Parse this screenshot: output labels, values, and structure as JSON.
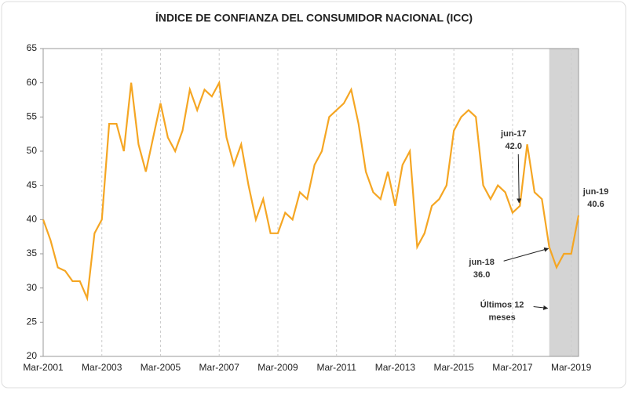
{
  "chart_data": {
    "type": "line",
    "title": "ÍNDICE DE CONFIANZA DEL CONSUMIDOR NACIONAL (ICC)",
    "categories": [
      "Mar-2001",
      null,
      null,
      null,
      null,
      null,
      null,
      null,
      "Mar-2003",
      null,
      null,
      null,
      null,
      null,
      null,
      null,
      "Mar-2005",
      null,
      null,
      null,
      null,
      null,
      null,
      null,
      "Mar-2007",
      null,
      null,
      null,
      null,
      null,
      null,
      null,
      "Mar-2009",
      null,
      null,
      null,
      null,
      null,
      null,
      null,
      "Mar-2011",
      null,
      null,
      null,
      null,
      null,
      null,
      null,
      "Mar-2013",
      null,
      null,
      null,
      null,
      null,
      null,
      null,
      "Mar-2015",
      null,
      null,
      null,
      null,
      null,
      null,
      null,
      "Mar-2017",
      null,
      null,
      null,
      null,
      null,
      null,
      null,
      "Mar-2019",
      null
    ],
    "series": [
      {
        "name": "ICC",
        "color": "#f5a623",
        "values": [
          40,
          37,
          33,
          32.5,
          31,
          31,
          28.5,
          38,
          40,
          54,
          54,
          50,
          60,
          51,
          47,
          52,
          57,
          52,
          50,
          53,
          59,
          56,
          59,
          58,
          60,
          52,
          48,
          51,
          45,
          40,
          43,
          38,
          38,
          41,
          40,
          44,
          43,
          48,
          50,
          55,
          56,
          57,
          59,
          54,
          47,
          44,
          43,
          47,
          42,
          48,
          50,
          36,
          38,
          42,
          43,
          45,
          53,
          55,
          56,
          55,
          45,
          43,
          45,
          44,
          41,
          42,
          51,
          44,
          43,
          36,
          33,
          35,
          35,
          40.6
        ]
      }
    ],
    "ylim": [
      20,
      65
    ],
    "yticks": [
      20,
      25,
      30,
      35,
      40,
      45,
      50,
      55,
      60,
      65
    ],
    "grid": true,
    "annotations": [
      {
        "label": "jun-17",
        "value": 42,
        "value_label": "42.0"
      },
      {
        "label": "jun-18",
        "value": 36,
        "value_label": "36.0"
      },
      {
        "label": "jun-19",
        "value": 40.6,
        "value_label": "40.6"
      }
    ],
    "shade": {
      "label": "Últimos 12 meses",
      "color": "#d4d4d4"
    }
  }
}
